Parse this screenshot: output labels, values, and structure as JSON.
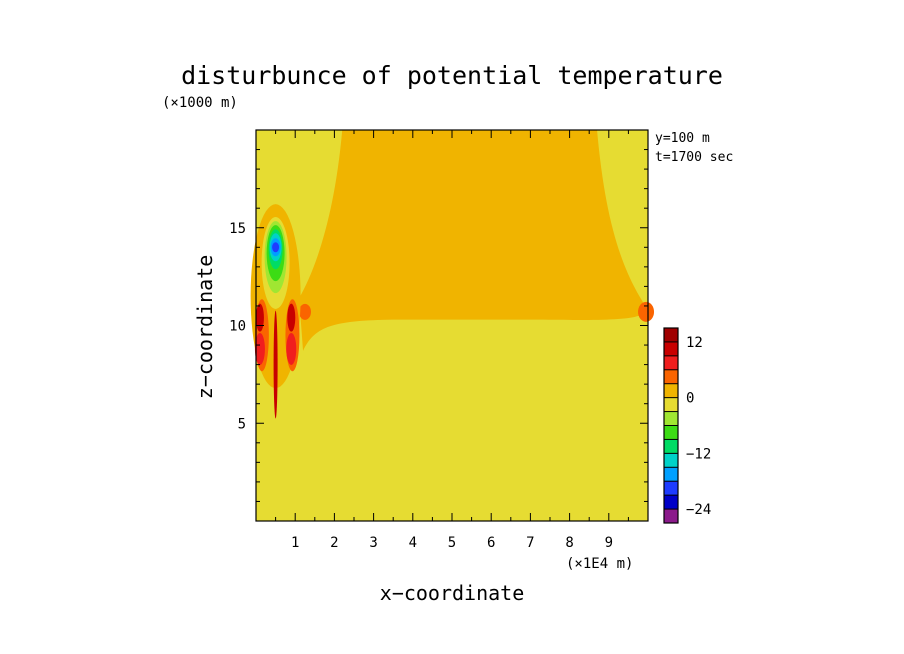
{
  "chart_data": {
    "type": "heatmap",
    "title": "disturbunce of potential temperature",
    "xlabel": "x−coordinate",
    "ylabel": "z−coordinate",
    "x_unit": "(×1E4 m)",
    "y_unit": "(×1000 m)",
    "annotations": [
      "y=100 m",
      "t=1700 sec"
    ],
    "xlim": [
      0,
      10
    ],
    "ylim": [
      0,
      20
    ],
    "x_ticks": [
      1,
      2,
      3,
      4,
      5,
      6,
      7,
      8,
      9
    ],
    "y_ticks": [
      5,
      10,
      15
    ],
    "grid": false,
    "colorbar": {
      "range": [
        -27,
        15
      ],
      "step": 3,
      "tick_values": [
        12,
        0,
        -12,
        -24
      ],
      "tick_labels": [
        "12",
        "0",
        "−12",
        "−24"
      ],
      "colors": [
        "#8b1a8b",
        "#0000c8",
        "#1e3cff",
        "#00a0ff",
        "#00d2c8",
        "#00dc64",
        "#3cdc14",
        "#a0e632",
        "#e6dc32",
        "#f0b400",
        "#fa6400",
        "#f01e1e",
        "#c80000",
        "#a00000"
      ]
    },
    "fields": {
      "background_value_range": [
        -3,
        0
      ],
      "upper_region_value_range": [
        0,
        3
      ],
      "inversion_height_km": 10.3,
      "disturbance_x": 0.5,
      "min_value_approx": -24,
      "max_value_approx": 12
    }
  }
}
